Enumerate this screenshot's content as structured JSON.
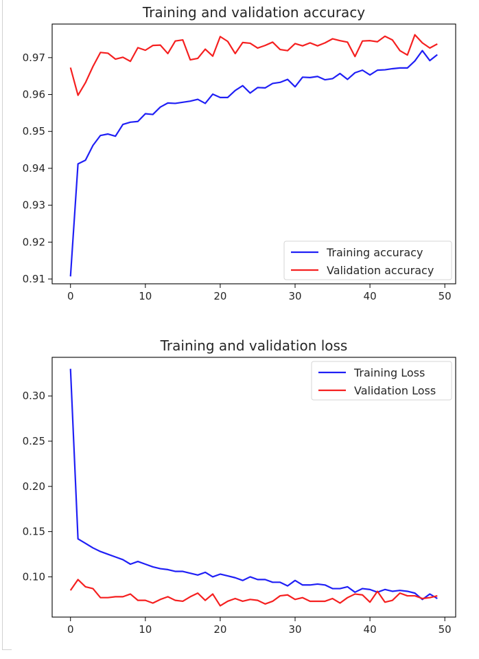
{
  "chart_data": [
    {
      "type": "line",
      "title": "Training and validation accuracy",
      "xlabel": "",
      "ylabel": "",
      "xlim": [
        -2.45,
        51.45
      ],
      "ylim": [
        0.9087,
        0.9791
      ],
      "x_ticks": [
        0,
        10,
        20,
        30,
        40,
        50
      ],
      "y_ticks": [
        0.91,
        0.92,
        0.93,
        0.94,
        0.95,
        0.96,
        0.97
      ],
      "x_tick_labels": [
        "0",
        "10",
        "20",
        "30",
        "40",
        "50"
      ],
      "y_tick_labels": [
        "0.91",
        "0.92",
        "0.93",
        "0.94",
        "0.95",
        "0.96",
        "0.97"
      ],
      "legend_position": "lower-right",
      "grid": false,
      "x": [
        0,
        1,
        2,
        3,
        4,
        5,
        6,
        7,
        8,
        9,
        10,
        11,
        12,
        13,
        14,
        15,
        16,
        17,
        18,
        19,
        20,
        21,
        22,
        23,
        24,
        25,
        26,
        27,
        28,
        29,
        30,
        31,
        32,
        33,
        34,
        35,
        36,
        37,
        38,
        39,
        40,
        41,
        42,
        43,
        44,
        45,
        46,
        47,
        48,
        49
      ],
      "series": [
        {
          "name": "Training accuracy",
          "color": "#1f1ff5",
          "values": [
            0.9107,
            0.9412,
            0.9422,
            0.9462,
            0.9489,
            0.9493,
            0.9487,
            0.9519,
            0.9525,
            0.9527,
            0.9548,
            0.9546,
            0.9566,
            0.9577,
            0.9576,
            0.9579,
            0.9582,
            0.9587,
            0.9576,
            0.9601,
            0.9592,
            0.9592,
            0.9611,
            0.9624,
            0.9604,
            0.9619,
            0.9618,
            0.963,
            0.9633,
            0.9641,
            0.9621,
            0.9647,
            0.9646,
            0.9649,
            0.964,
            0.9643,
            0.9657,
            0.9641,
            0.9659,
            0.9666,
            0.9653,
            0.9666,
            0.9667,
            0.967,
            0.9672,
            0.9672,
            0.9691,
            0.9719,
            0.9692,
            0.9708
          ]
        },
        {
          "name": "Validation accuracy",
          "color": "#f51f1f",
          "values": [
            0.9673,
            0.9598,
            0.9632,
            0.9676,
            0.9714,
            0.9712,
            0.9696,
            0.9701,
            0.969,
            0.9727,
            0.972,
            0.9733,
            0.9734,
            0.9711,
            0.9745,
            0.9748,
            0.9694,
            0.9698,
            0.9723,
            0.9704,
            0.9757,
            0.9744,
            0.9711,
            0.9741,
            0.9739,
            0.9726,
            0.9733,
            0.9742,
            0.9722,
            0.9719,
            0.9738,
            0.9732,
            0.974,
            0.9732,
            0.974,
            0.9751,
            0.9746,
            0.9742,
            0.9703,
            0.9745,
            0.9746,
            0.9743,
            0.9758,
            0.9748,
            0.9719,
            0.9707,
            0.9762,
            0.974,
            0.9726,
            0.9737
          ]
        }
      ]
    },
    {
      "type": "line",
      "title": "Training and validation loss",
      "xlabel": "",
      "ylabel": "",
      "xlim": [
        -2.45,
        51.45
      ],
      "ylim": [
        0.0555,
        0.3427
      ],
      "x_ticks": [
        0,
        10,
        20,
        30,
        40,
        50
      ],
      "y_ticks": [
        0.1,
        0.15,
        0.2,
        0.25,
        0.3
      ],
      "x_tick_labels": [
        "0",
        "10",
        "20",
        "30",
        "40",
        "50"
      ],
      "y_tick_labels": [
        "0.10",
        "0.15",
        "0.20",
        "0.25",
        "0.30"
      ],
      "legend_position": "upper-right",
      "grid": false,
      "x": [
        0,
        1,
        2,
        3,
        4,
        5,
        6,
        7,
        8,
        9,
        10,
        11,
        12,
        13,
        14,
        15,
        16,
        17,
        18,
        19,
        20,
        21,
        22,
        23,
        24,
        25,
        26,
        27,
        28,
        29,
        30,
        31,
        32,
        33,
        34,
        35,
        36,
        37,
        38,
        39,
        40,
        41,
        42,
        43,
        44,
        45,
        46,
        47,
        48,
        49
      ],
      "series": [
        {
          "name": "Training Loss",
          "color": "#1f1ff5",
          "values": [
            0.33,
            0.142,
            0.137,
            0.132,
            0.128,
            0.125,
            0.122,
            0.119,
            0.114,
            0.117,
            0.114,
            0.111,
            0.109,
            0.108,
            0.106,
            0.106,
            0.104,
            0.102,
            0.105,
            0.1,
            0.103,
            0.101,
            0.099,
            0.096,
            0.1,
            0.097,
            0.097,
            0.094,
            0.094,
            0.09,
            0.096,
            0.091,
            0.091,
            0.092,
            0.091,
            0.087,
            0.087,
            0.089,
            0.083,
            0.087,
            0.086,
            0.083,
            0.086,
            0.084,
            0.085,
            0.084,
            0.082,
            0.075,
            0.081,
            0.076
          ]
        },
        {
          "name": "Validation Loss",
          "color": "#f51f1f",
          "values": [
            0.085,
            0.097,
            0.089,
            0.087,
            0.077,
            0.077,
            0.078,
            0.078,
            0.081,
            0.074,
            0.074,
            0.071,
            0.075,
            0.078,
            0.074,
            0.073,
            0.078,
            0.082,
            0.074,
            0.081,
            0.068,
            0.073,
            0.076,
            0.073,
            0.075,
            0.074,
            0.07,
            0.073,
            0.079,
            0.08,
            0.075,
            0.077,
            0.073,
            0.073,
            0.073,
            0.076,
            0.071,
            0.077,
            0.081,
            0.08,
            0.072,
            0.084,
            0.072,
            0.074,
            0.082,
            0.079,
            0.079,
            0.076,
            0.077,
            0.079
          ]
        }
      ]
    }
  ]
}
